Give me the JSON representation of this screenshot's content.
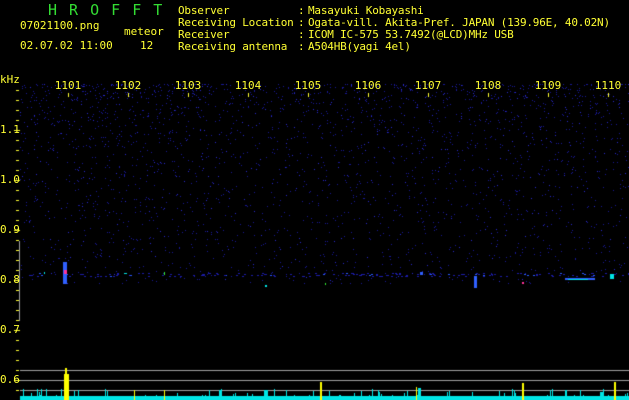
{
  "app_title": "H R O F F T",
  "file_name": "07021100.png",
  "datetime": "02.07.02 11:00",
  "meteor_label": "meteor",
  "meteor_count": "12",
  "info": [
    {
      "label": "Observer",
      "value": "Masayuki Kobayashi"
    },
    {
      "label": "Receiving Location",
      "value": "Ogata-vill. Akita-Pref. JAPAN (139.96E, 40.02N)"
    },
    {
      "label": "Receiver",
      "value": "ICOM IC-575 53.7492(@LCD)MHz USB"
    },
    {
      "label": "Receiving antenna",
      "value": "A504HB(yagi 4el)"
    }
  ],
  "separator": ":",
  "y_unit": "kHz",
  "x_ticks": [
    "1101",
    "1102",
    "1103",
    "1104",
    "1105",
    "1106",
    "1107",
    "1108",
    "1109",
    "1110"
  ],
  "y_ticks": [
    "1.1",
    "1.0",
    "0.9",
    "0.8",
    "0.7",
    "0.6"
  ],
  "colors": {
    "text": "#ffff33",
    "title": "#33dd33",
    "noise": "#1a1a9a",
    "histogram": "#00e5e5",
    "meteor_bar": "#ffff00",
    "grid": "#a0a0a0"
  }
}
